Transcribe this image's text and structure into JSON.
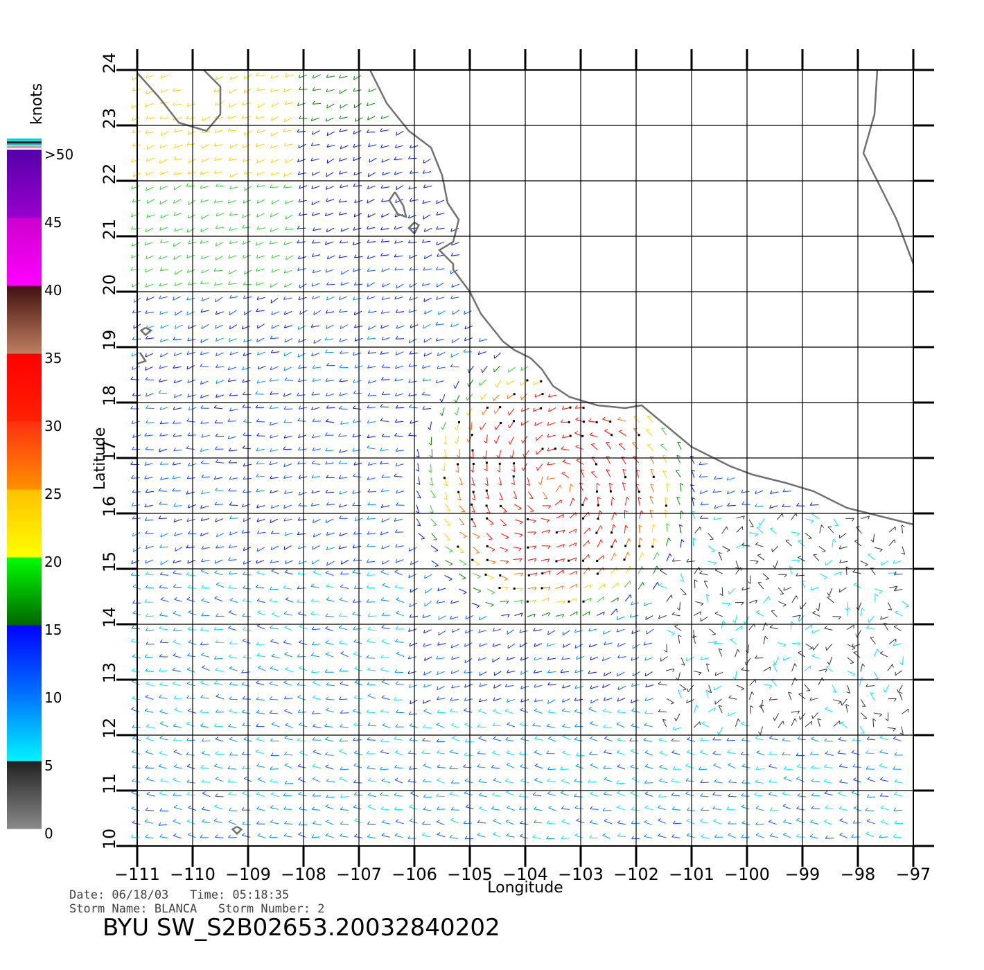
{
  "map": {
    "lon_range": [
      -111,
      -97
    ],
    "lat_range": [
      10,
      24
    ],
    "x_ticks": [
      -111,
      -110,
      -109,
      -108,
      -107,
      -106,
      -105,
      -104,
      -103,
      -102,
      -101,
      -100,
      -99,
      -98,
      -97
    ],
    "y_ticks": [
      10,
      11,
      12,
      13,
      14,
      15,
      16,
      17,
      18,
      19,
      20,
      21,
      22,
      23,
      24
    ],
    "x_tick_labels": [
      "−111",
      "−110",
      "−109",
      "−108",
      "−107",
      "−106",
      "−105",
      "−104",
      "−103",
      "−102",
      "−101",
      "−100",
      "−99",
      "−98",
      "−97"
    ],
    "y_tick_labels": [
      "10",
      "11",
      "12",
      "13",
      "14",
      "15",
      "16",
      "17",
      "18",
      "19",
      "20",
      "21",
      "22",
      "23",
      "24"
    ],
    "xlabel": "Longitude",
    "ylabel": "Latitude",
    "storm_center": [
      -103.5,
      16.5
    ],
    "coast_color": "#707070",
    "grid": true
  },
  "color_scale": {
    "unit": "knots",
    "labels": [
      ">50",
      "45",
      "40",
      "35",
      "30",
      "25",
      "20",
      "15",
      "10",
      "5",
      "0"
    ],
    "bands": [
      {
        "from": 0,
        "to": 5,
        "colors": [
          "#8a8a8a",
          "#202020"
        ]
      },
      {
        "from": 5,
        "to": 10,
        "colors": [
          "#00f4ff",
          "#0070ff"
        ]
      },
      {
        "from": 10,
        "to": 15,
        "colors": [
          "#0070ff",
          "#0000ff"
        ]
      },
      {
        "from": 15,
        "to": 20,
        "colors": [
          "#006600",
          "#00ff00"
        ]
      },
      {
        "from": 20,
        "to": 25,
        "colors": [
          "#ffff00",
          "#ffc000"
        ]
      },
      {
        "from": 25,
        "to": 30,
        "colors": [
          "#ff9000",
          "#ff3010"
        ]
      },
      {
        "from": 30,
        "to": 35,
        "colors": [
          "#ff2000",
          "#ff0000"
        ]
      },
      {
        "from": 35,
        "to": 40,
        "colors": [
          "#c08060",
          "#401010"
        ]
      },
      {
        "from": 40,
        "to": 45,
        "colors": [
          "#ff00ff",
          "#cc00cc"
        ]
      },
      {
        "from": 45,
        "to": 50,
        "colors": [
          "#9900cc",
          "#5500aa"
        ]
      }
    ]
  },
  "info": {
    "date_line": "Date: 06/18/03   Time: 05:18:35",
    "storm_line": "Storm Name: BLANCA   Storm Number: 2",
    "product_id": "BYU SW_S2B02653.20032840202"
  }
}
